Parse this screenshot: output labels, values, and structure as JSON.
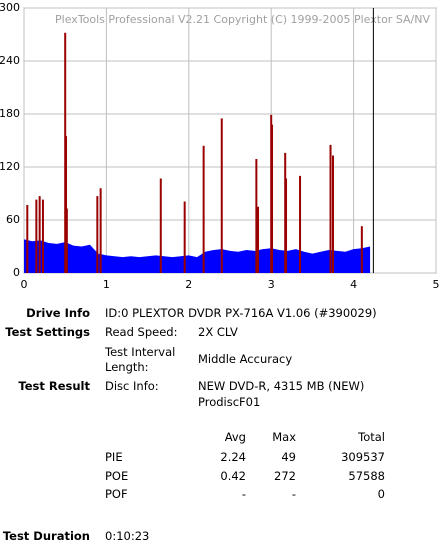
{
  "chart_data": {
    "type": "combo",
    "title": "PlexTools Professional V2.21 Copyright (C) 1999-2005 Plextor SA/NV",
    "xlim": [
      0,
      5
    ],
    "xticks": [
      0,
      1,
      2,
      3,
      4,
      5
    ],
    "ylim": [
      0,
      300
    ],
    "yticks": [
      0,
      60,
      120,
      180,
      240,
      300
    ],
    "grid": true,
    "marker_x": 4.24,
    "marker_color": "#000000",
    "series": [
      {
        "type": "area",
        "color": "#0000ff",
        "x": [
          0,
          0.1,
          0.2,
          0.3,
          0.4,
          0.5,
          0.6,
          0.7,
          0.8,
          0.9,
          1.0,
          1.1,
          1.2,
          1.3,
          1.4,
          1.5,
          1.6,
          1.7,
          1.8,
          1.9,
          2.0,
          2.1,
          2.2,
          2.3,
          2.4,
          2.5,
          2.6,
          2.7,
          2.8,
          2.9,
          3.0,
          3.1,
          3.2,
          3.3,
          3.4,
          3.5,
          3.6,
          3.7,
          3.8,
          3.9,
          4.0,
          4.1,
          4.2
        ],
        "values": [
          38,
          36,
          37,
          34,
          33,
          35,
          31,
          30,
          32,
          22,
          20,
          19,
          18,
          19,
          18,
          19,
          20,
          19,
          18,
          19,
          20,
          18,
          24,
          26,
          27,
          25,
          24,
          26,
          25,
          27,
          28,
          26,
          25,
          27,
          24,
          22,
          24,
          26,
          25,
          24,
          27,
          28,
          30
        ]
      },
      {
        "type": "spike",
        "color": "#990000",
        "x": [
          0.04,
          0.15,
          0.19,
          0.23,
          0.5,
          0.51,
          0.52,
          0.89,
          0.93,
          1.66,
          1.95,
          2.18,
          2.4,
          2.82,
          2.84,
          3.0,
          3.01,
          3.17,
          3.18,
          3.35,
          3.72,
          3.75,
          4.1
        ],
        "values": [
          77,
          83,
          87,
          83,
          272,
          155,
          73,
          87,
          96,
          107,
          81,
          144,
          175,
          129,
          75,
          179,
          168,
          136,
          107,
          110,
          145,
          133,
          53
        ]
      }
    ]
  },
  "report": {
    "drive_info": {
      "label": "Drive Info",
      "value": "ID:0 PLEXTOR DVDR PX-716A V1.06 (#390029)"
    },
    "test_settings": {
      "label": "Test Settings",
      "rows": [
        [
          "Read Speed:",
          "2X CLV"
        ],
        [
          "Test Interval Length:",
          "Middle Accuracy"
        ]
      ]
    },
    "test_result": {
      "label": "Test Result",
      "key": "Disc Info:",
      "lines": [
        "NEW DVD-R, 4315 MB (NEW)",
        "ProdiscF01"
      ]
    },
    "stats": {
      "header": [
        "Avg",
        "Max",
        "Total"
      ],
      "rows": [
        [
          "PIE",
          "2.24",
          "49",
          "309537"
        ],
        [
          "POE",
          "0.42",
          "272",
          "57588"
        ],
        [
          "POF",
          "-",
          "-",
          "0"
        ]
      ]
    },
    "test_duration": {
      "label": "Test Duration",
      "value": "0:10:23"
    }
  }
}
